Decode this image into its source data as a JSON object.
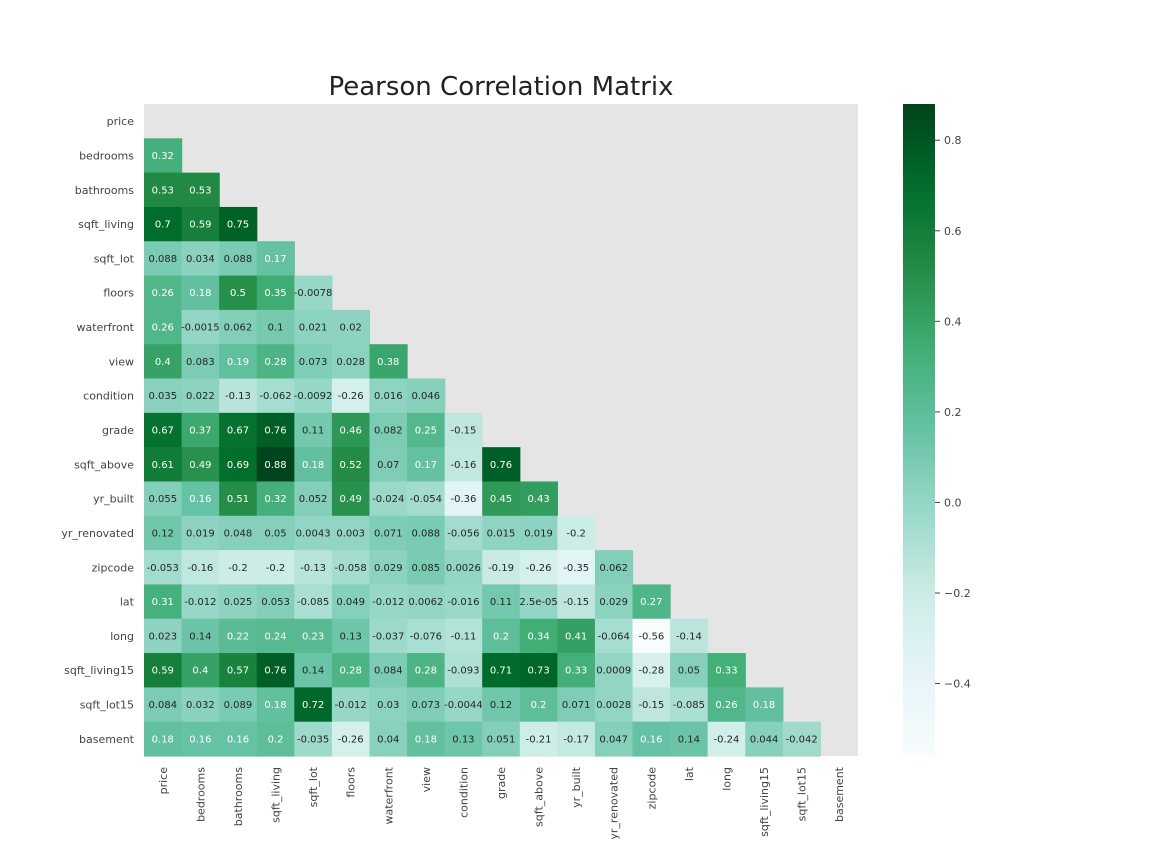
{
  "chart_data": {
    "type": "heatmap",
    "title": "Pearson Correlation Matrix",
    "colormap": "Greens (BuGn-like)",
    "mask": "upper triangle incl. diagonal",
    "labels": [
      "price",
      "bedrooms",
      "bathrooms",
      "sqft_living",
      "sqft_lot",
      "floors",
      "waterfront",
      "view",
      "condition",
      "grade",
      "sqft_above",
      "yr_built",
      "yr_renovated",
      "zipcode",
      "lat",
      "long",
      "sqft_living15",
      "sqft_lot15",
      "basement"
    ],
    "matrix": [
      [],
      [
        "0.32"
      ],
      [
        "0.53",
        "0.53"
      ],
      [
        "0.7",
        "0.59",
        "0.75"
      ],
      [
        "0.088",
        "0.034",
        "0.088",
        "0.17"
      ],
      [
        "0.26",
        "0.18",
        "0.5",
        "0.35",
        "-0.0078"
      ],
      [
        "0.26",
        "-0.0015",
        "0.062",
        "0.1",
        "0.021",
        "0.02"
      ],
      [
        "0.4",
        "0.083",
        "0.19",
        "0.28",
        "0.073",
        "0.028",
        "0.38"
      ],
      [
        "0.035",
        "0.022",
        "-0.13",
        "-0.062",
        "-0.0092",
        "-0.26",
        "0.016",
        "0.046"
      ],
      [
        "0.67",
        "0.37",
        "0.67",
        "0.76",
        "0.11",
        "0.46",
        "0.082",
        "0.25",
        "-0.15"
      ],
      [
        "0.61",
        "0.49",
        "0.69",
        "0.88",
        "0.18",
        "0.52",
        "0.07",
        "0.17",
        "-0.16",
        "0.76"
      ],
      [
        "0.055",
        "0.16",
        "0.51",
        "0.32",
        "0.052",
        "0.49",
        "-0.024",
        "-0.054",
        "-0.36",
        "0.45",
        "0.43"
      ],
      [
        "0.12",
        "0.019",
        "0.048",
        "0.05",
        "0.0043",
        "0.003",
        "0.071",
        "0.088",
        "-0.056",
        "0.015",
        "0.019",
        "-0.2"
      ],
      [
        "-0.053",
        "-0.16",
        "-0.2",
        "-0.2",
        "-0.13",
        "-0.058",
        "0.029",
        "0.085",
        "0.0026",
        "-0.19",
        "-0.26",
        "-0.35",
        "0.062"
      ],
      [
        "0.31",
        "-0.012",
        "0.025",
        "0.053",
        "-0.085",
        "0.049",
        "-0.012",
        "0.0062",
        "-0.016",
        "0.11",
        "2.5e-05",
        "-0.15",
        "0.029",
        "0.27"
      ],
      [
        "0.023",
        "0.14",
        "0.22",
        "0.24",
        "0.23",
        "0.13",
        "-0.037",
        "-0.076",
        "-0.11",
        "0.2",
        "0.34",
        "0.41",
        "-0.064",
        "-0.56",
        "-0.14"
      ],
      [
        "0.59",
        "0.4",
        "0.57",
        "0.76",
        "0.14",
        "0.28",
        "0.084",
        "0.28",
        "-0.093",
        "0.71",
        "0.73",
        "0.33",
        "0.0009",
        "-0.28",
        "0.05",
        "0.33"
      ],
      [
        "0.084",
        "0.032",
        "0.089",
        "0.18",
        "0.72",
        "-0.012",
        "0.03",
        "0.073",
        "-0.0044",
        "0.12",
        "0.2",
        "0.071",
        "0.0028",
        "-0.15",
        "-0.085",
        "0.26",
        "0.18"
      ],
      [
        "0.18",
        "0.16",
        "0.16",
        "0.2",
        "-0.035",
        "-0.26",
        "0.04",
        "0.18",
        "0.13",
        "0.051",
        "-0.21",
        "-0.17",
        "0.047",
        "0.16",
        "0.14",
        "-0.24",
        "0.044",
        "-0.042"
      ]
    ],
    "colorbar": {
      "vmin": -0.56,
      "vmax": 0.88,
      "ticks": [
        {
          "value": 0.8,
          "label": "0.8"
        },
        {
          "value": 0.6,
          "label": "0.6"
        },
        {
          "value": 0.4,
          "label": "0.4"
        },
        {
          "value": 0.2,
          "label": "0.2"
        },
        {
          "value": 0.0,
          "label": "0.0"
        },
        {
          "value": -0.2,
          "label": "−0.2"
        },
        {
          "value": -0.4,
          "label": "−0.4"
        }
      ]
    },
    "colors": {
      "background": "#e5e5e5",
      "label_text": "#444444",
      "cell_text_dark": "#262626",
      "cell_text_light": "#ffffff"
    }
  }
}
